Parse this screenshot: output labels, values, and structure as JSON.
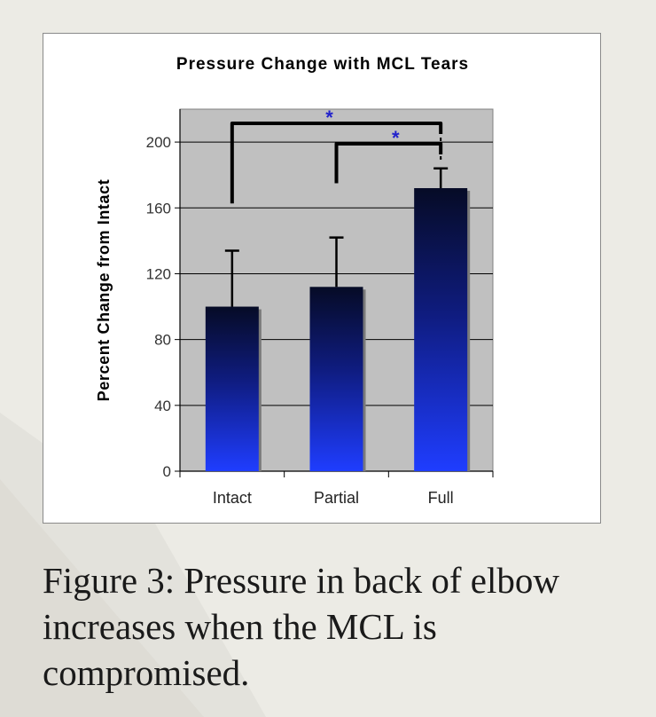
{
  "chart_data": {
    "type": "bar",
    "title": "Pressure Change with MCL Tears",
    "xlabel": "",
    "ylabel": "Percent Change from Intact",
    "categories": [
      "Intact",
      "Partial",
      "Full"
    ],
    "values": [
      100,
      112,
      172
    ],
    "error_upper": [
      134,
      142,
      184
    ],
    "ylim": [
      0,
      220
    ],
    "yticks": [
      0,
      40,
      80,
      120,
      160,
      200
    ],
    "grid": true,
    "significance": [
      {
        "from": "Intact",
        "to": "Full",
        "symbol": "*"
      },
      {
        "from": "Partial",
        "to": "Full",
        "symbol": "*"
      }
    ],
    "colors": {
      "bar_top": "#060b26",
      "bar_bottom": "#1f3dff",
      "plot_bg": "#c0c0c0",
      "star": "#2222cc"
    }
  },
  "caption": "Figure 3: Pressure in back of elbow increases when the MCL is compromised."
}
